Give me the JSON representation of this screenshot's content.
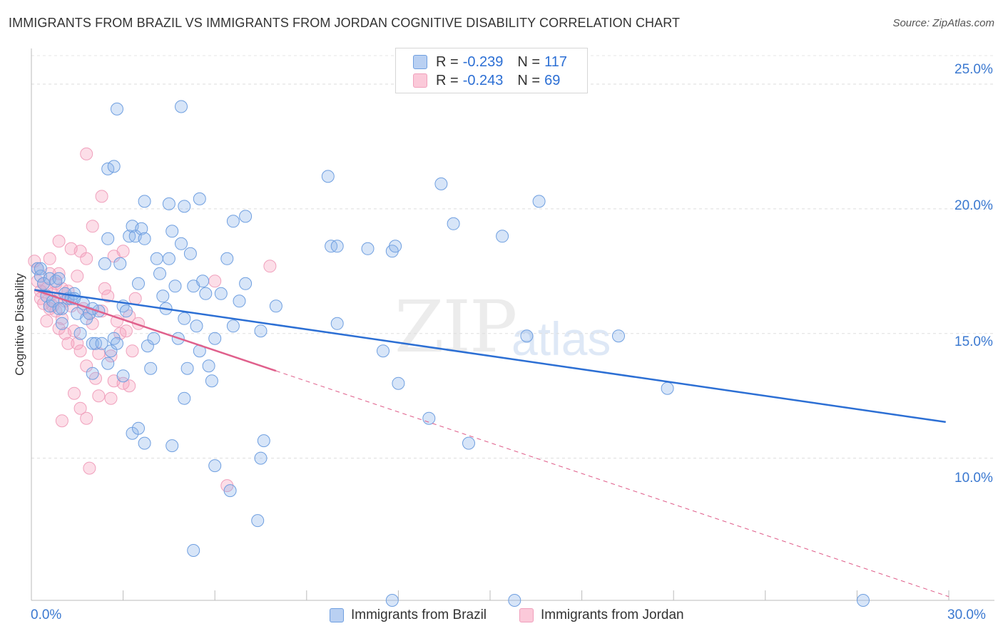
{
  "title": "IMMIGRANTS FROM BRAZIL VS IMMIGRANTS FROM JORDAN COGNITIVE DISABILITY CORRELATION CHART",
  "source": "Source: ZipAtlas.com",
  "watermark": {
    "zip": "ZIP",
    "atlas": "atlas"
  },
  "stats": {
    "brazil": {
      "r_label": "R =",
      "r": "-0.239",
      "n_label": "N =",
      "n": "117"
    },
    "jordan": {
      "r_label": "R =",
      "r": "-0.243",
      "n_label": "N =",
      "n": "69"
    }
  },
  "colors": {
    "brazil": "#6f9fe0",
    "brazil_line": "#2c6fd4",
    "jordan": "#f0a0bc",
    "jordan_line": "#e0608c",
    "tick": "#3a78d0"
  },
  "chart_data": {
    "type": "scatter",
    "title": "IMMIGRANTS FROM BRAZIL VS IMMIGRANTS FROM JORDAN COGNITIVE DISABILITY CORRELATION CHART",
    "xlabel": "",
    "ylabel": "Cognitive Disability",
    "xlim": [
      0,
      30
    ],
    "ylim": [
      4.3,
      26.2
    ],
    "x_tick_labels": [
      "0.0%",
      "30.0%"
    ],
    "y_ticks": [
      10,
      15,
      20,
      25
    ],
    "y_tick_labels": [
      "10.0%",
      "15.0%",
      "20.0%",
      "25.0%"
    ],
    "grid": true,
    "legend": "bottom-center",
    "series": [
      {
        "name": "Immigrants from Brazil",
        "trend": {
          "x": [
            0.1,
            29.9
          ],
          "y": [
            16.75,
            11.45
          ]
        },
        "points": [
          [
            0.2,
            17.6
          ],
          [
            0.3,
            17.3
          ],
          [
            0.4,
            17.0
          ],
          [
            0.5,
            16.5
          ],
          [
            0.6,
            17.2
          ],
          [
            0.6,
            16.1
          ],
          [
            0.7,
            16.3
          ],
          [
            0.8,
            17.1
          ],
          [
            0.9,
            17.2
          ],
          [
            1.0,
            16.0
          ],
          [
            1.0,
            15.4
          ],
          [
            1.1,
            16.6
          ],
          [
            1.2,
            16.4
          ],
          [
            1.3,
            16.4
          ],
          [
            1.4,
            16.6
          ],
          [
            1.5,
            15.8
          ],
          [
            1.6,
            15.0
          ],
          [
            1.7,
            16.2
          ],
          [
            1.8,
            15.6
          ],
          [
            1.9,
            15.8
          ],
          [
            2.0,
            14.6
          ],
          [
            2.1,
            14.6
          ],
          [
            2.2,
            15.9
          ],
          [
            2.3,
            14.6
          ],
          [
            2.4,
            17.8
          ],
          [
            2.5,
            18.8
          ],
          [
            2.6,
            14.3
          ],
          [
            2.7,
            14.8
          ],
          [
            2.8,
            14.6
          ],
          [
            2.9,
            17.8
          ],
          [
            3.0,
            16.1
          ],
          [
            3.1,
            15.9
          ],
          [
            3.2,
            18.9
          ],
          [
            3.3,
            19.3
          ],
          [
            3.4,
            18.9
          ],
          [
            3.5,
            17.0
          ],
          [
            3.6,
            19.2
          ],
          [
            3.7,
            18.8
          ],
          [
            3.8,
            14.5
          ],
          [
            3.9,
            13.6
          ],
          [
            4.0,
            14.8
          ],
          [
            4.1,
            18.0
          ],
          [
            4.2,
            17.4
          ],
          [
            4.3,
            16.5
          ],
          [
            4.4,
            16.0
          ],
          [
            4.5,
            18.0
          ],
          [
            4.6,
            19.1
          ],
          [
            4.7,
            16.9
          ],
          [
            4.8,
            14.8
          ],
          [
            4.9,
            18.6
          ],
          [
            5.0,
            15.6
          ],
          [
            5.1,
            13.6
          ],
          [
            5.2,
            18.2
          ],
          [
            5.3,
            16.9
          ],
          [
            5.4,
            15.3
          ],
          [
            5.5,
            14.3
          ],
          [
            5.6,
            17.1
          ],
          [
            5.7,
            16.6
          ],
          [
            5.8,
            13.7
          ],
          [
            5.9,
            13.1
          ],
          [
            6.0,
            14.8
          ],
          [
            6.2,
            16.6
          ],
          [
            6.4,
            18.0
          ],
          [
            6.6,
            15.3
          ],
          [
            6.8,
            16.3
          ],
          [
            7.0,
            17.0
          ],
          [
            7.5,
            15.1
          ],
          [
            8.0,
            16.1
          ],
          [
            2.5,
            21.6
          ],
          [
            2.7,
            21.7
          ],
          [
            3.7,
            20.3
          ],
          [
            4.5,
            20.2
          ],
          [
            5.0,
            20.1
          ],
          [
            5.5,
            20.4
          ],
          [
            6.6,
            19.5
          ],
          [
            7.0,
            19.7
          ],
          [
            2.8,
            24.0
          ],
          [
            4.9,
            24.1
          ],
          [
            9.7,
            21.3
          ],
          [
            13.4,
            21.0
          ],
          [
            16.6,
            20.3
          ],
          [
            9.8,
            18.5
          ],
          [
            10.0,
            18.5
          ],
          [
            11.0,
            18.4
          ],
          [
            11.8,
            18.3
          ],
          [
            11.9,
            18.5
          ],
          [
            13.8,
            19.4
          ],
          [
            15.4,
            18.9
          ],
          [
            10.0,
            15.4
          ],
          [
            11.5,
            14.3
          ],
          [
            12.0,
            13.0
          ],
          [
            13.0,
            11.6
          ],
          [
            14.3,
            10.6
          ],
          [
            16.2,
            14.9
          ],
          [
            19.2,
            14.9
          ],
          [
            20.8,
            12.8
          ],
          [
            2.0,
            13.4
          ],
          [
            2.5,
            13.8
          ],
          [
            3.0,
            13.3
          ],
          [
            3.3,
            11.0
          ],
          [
            3.5,
            11.2
          ],
          [
            3.7,
            10.6
          ],
          [
            4.6,
            10.5
          ],
          [
            5.0,
            12.4
          ],
          [
            6.0,
            9.7
          ],
          [
            6.5,
            8.7
          ],
          [
            7.5,
            10.0
          ],
          [
            7.6,
            10.7
          ],
          [
            7.4,
            7.5
          ],
          [
            5.3,
            6.3
          ],
          [
            11.8,
            4.3
          ],
          [
            15.8,
            4.3
          ],
          [
            27.2,
            4.3
          ],
          [
            2.0,
            16.0
          ],
          [
            1.4,
            16.4
          ],
          [
            0.9,
            16.0
          ],
          [
            0.3,
            17.6
          ]
        ]
      },
      {
        "name": "Immigrants from Jordan",
        "trend": {
          "x": [
            0.1,
            8.0
          ],
          "y": [
            16.75,
            13.5
          ]
        },
        "points": [
          [
            0.1,
            17.9
          ],
          [
            0.2,
            17.6
          ],
          [
            0.2,
            17.1
          ],
          [
            0.3,
            16.7
          ],
          [
            0.3,
            16.4
          ],
          [
            0.4,
            17.0
          ],
          [
            0.4,
            16.2
          ],
          [
            0.5,
            15.5
          ],
          [
            0.5,
            16.8
          ],
          [
            0.6,
            17.4
          ],
          [
            0.6,
            16.0
          ],
          [
            0.7,
            16.6
          ],
          [
            0.7,
            16.1
          ],
          [
            0.8,
            15.9
          ],
          [
            0.8,
            17.0
          ],
          [
            0.9,
            16.4
          ],
          [
            0.9,
            15.2
          ],
          [
            1.0,
            16.8
          ],
          [
            1.0,
            15.6
          ],
          [
            1.1,
            16.3
          ],
          [
            1.1,
            15.0
          ],
          [
            1.2,
            16.7
          ],
          [
            1.2,
            14.6
          ],
          [
            1.3,
            16.1
          ],
          [
            1.4,
            15.1
          ],
          [
            1.5,
            14.6
          ],
          [
            1.6,
            14.3
          ],
          [
            1.7,
            16.0
          ],
          [
            1.8,
            13.7
          ],
          [
            1.9,
            15.8
          ],
          [
            2.0,
            15.4
          ],
          [
            2.1,
            13.2
          ],
          [
            2.2,
            14.2
          ],
          [
            2.3,
            15.9
          ],
          [
            2.4,
            16.8
          ],
          [
            2.5,
            16.5
          ],
          [
            2.6,
            14.1
          ],
          [
            2.7,
            13.1
          ],
          [
            2.8,
            15.5
          ],
          [
            2.9,
            15.0
          ],
          [
            3.0,
            13.0
          ],
          [
            3.1,
            15.1
          ],
          [
            3.2,
            15.7
          ],
          [
            3.3,
            14.3
          ],
          [
            3.4,
            16.4
          ],
          [
            3.5,
            15.4
          ],
          [
            0.6,
            18.0
          ],
          [
            0.9,
            18.7
          ],
          [
            1.3,
            18.4
          ],
          [
            1.6,
            18.3
          ],
          [
            1.8,
            18.0
          ],
          [
            2.0,
            19.3
          ],
          [
            3.0,
            18.3
          ],
          [
            1.8,
            22.2
          ],
          [
            2.3,
            20.5
          ],
          [
            1.4,
            12.6
          ],
          [
            1.6,
            12.0
          ],
          [
            1.8,
            11.6
          ],
          [
            2.2,
            12.5
          ],
          [
            2.6,
            12.4
          ],
          [
            3.2,
            12.9
          ],
          [
            1.0,
            11.5
          ],
          [
            1.9,
            9.6
          ],
          [
            6.4,
            8.9
          ],
          [
            7.8,
            17.7
          ],
          [
            6.0,
            17.1
          ],
          [
            1.5,
            17.3
          ],
          [
            0.9,
            17.4
          ],
          [
            2.7,
            18.1
          ]
        ]
      }
    ]
  },
  "legend": {
    "brazil_label": "Immigrants from Brazil",
    "jordan_label": "Immigrants from Jordan"
  }
}
